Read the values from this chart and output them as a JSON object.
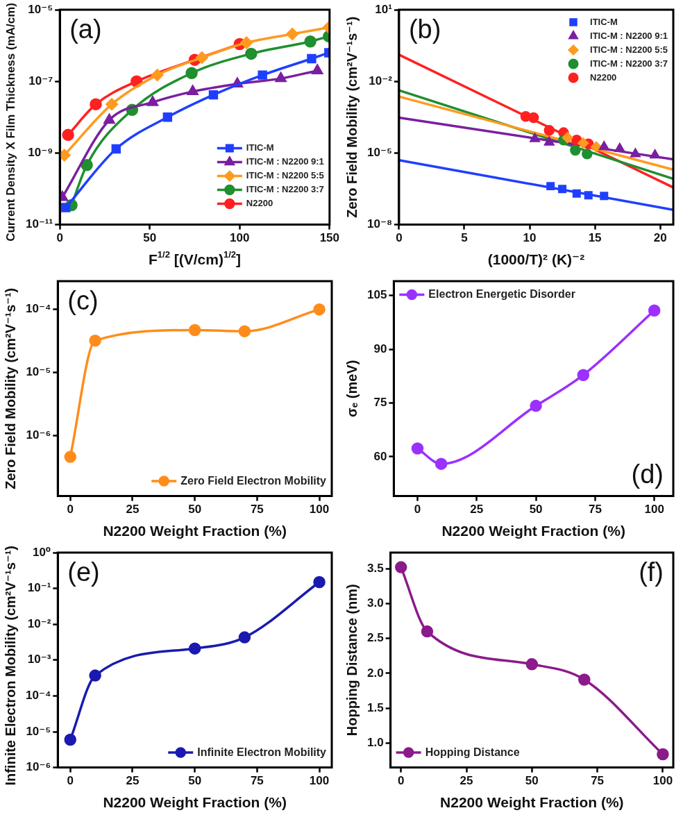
{
  "chart_data": [
    {
      "type": "line",
      "annotations": [
        "(a)"
      ],
      "xlabel": "F$^{1/2}$ [(V/cm)$^{1/2}$]",
      "ylabel": "Current Density X Film Thickness (mA/cm)",
      "log": "y",
      "xlim": [
        0,
        150
      ],
      "xticks": [
        0,
        50,
        100,
        150
      ],
      "ylim": [
        1e-11,
        1e-05
      ],
      "yticks": [
        {
          "value": 1e-11,
          "label": "10⁻¹¹"
        },
        {
          "value": 1e-09,
          "label": "10⁻⁹"
        },
        {
          "value": 1e-07,
          "label": "10⁻⁷"
        },
        {
          "value": 1e-05,
          "label": "10⁻⁵"
        }
      ],
      "legend": "bottom right",
      "grid": false,
      "series": [
        {
          "name": "ITIC-M",
          "color": "#1f3fff",
          "marker": "square",
          "x": [
            3.3,
            31.3,
            59.9,
            85.4,
            112.7,
            140,
            149.6
          ],
          "values": [
            3e-11,
            1.3e-09,
            1e-08,
            4.2e-08,
            1.5e-07,
            4.3e-07,
            6.3e-07
          ]
        },
        {
          "name": "ITIC-M : N2200 9:1",
          "color": "#7a1fa0",
          "marker": "triangle",
          "x": [
            1.4,
            27.5,
            51.6,
            73.9,
            98.7,
            122.9,
            143.2
          ],
          "values": [
            5.8e-11,
            8.3e-09,
            2.6e-08,
            5.2e-08,
            8.5e-08,
            1.2e-07,
            2e-07
          ]
        },
        {
          "name": "ITIC-M : N2200 5:5",
          "color": "#ff9a1f",
          "marker": "diamond",
          "x": [
            2.5,
            28.9,
            54.2,
            79,
            103.8,
            129.3,
            149.6
          ],
          "values": [
            8.7e-10,
            2.3e-08,
            1.5e-07,
            4.6e-07,
            1.2e-06,
            2.1e-06,
            3.2e-06
          ]
        },
        {
          "name": "ITIC-M : N2200 3:7",
          "color": "#1f8f2f",
          "marker": "circle",
          "x": [
            6.5,
            15,
            40.2,
            73.3,
            106.4,
            139.3,
            149.6
          ],
          "values": [
            3.5e-11,
            4.6e-10,
            1.6e-08,
            1.7e-07,
            5.9e-07,
            1.3e-06,
            1.8e-06
          ]
        },
        {
          "name": "N2200",
          "color": "#ff2020",
          "marker": "circle",
          "x": [
            4.6,
            20,
            42.7,
            75,
            100
          ],
          "values": [
            3.2e-09,
            2.3e-08,
            1e-07,
            4e-07,
            1.1e-06
          ]
        }
      ]
    },
    {
      "type": "scatter",
      "annotations": [
        "(b)"
      ],
      "xlabel": "(1000/T)² (K)⁻²",
      "ylabel": "Zero Field Mobility (cm²V⁻¹s⁻¹)",
      "log": "y",
      "xlim": [
        0,
        21
      ],
      "xticks": [
        0,
        5,
        10,
        15,
        20
      ],
      "ylim": [
        1e-08,
        10
      ],
      "yticks": [
        {
          "value": 1e-08,
          "label": "10⁻⁸"
        },
        {
          "value": 1e-05,
          "label": "10⁻⁵"
        },
        {
          "value": 0.01,
          "label": "10⁻²"
        },
        {
          "value": 10,
          "label": "10¹"
        }
      ],
      "legend": "top right",
      "grid": false,
      "series": [
        {
          "name": "ITIC-M",
          "color": "#1f3fff",
          "marker": "square",
          "x": [
            11.6,
            12.5,
            13.6,
            14.5,
            15.7
          ],
          "values": [
            4.1e-07,
            3.1e-07,
            2e-07,
            1.7e-07,
            1.6e-07
          ]
        },
        {
          "name": "ITIC-M : N2200 9:1",
          "color": "#7a1fa0",
          "marker": "triangle",
          "x": [
            10.4,
            11.5,
            15.7,
            16.9,
            18.1,
            19.6
          ],
          "values": [
            3.9e-05,
            2.8e-05,
            1.8e-05,
            1.5e-05,
            9.1e-06,
            8.1e-06
          ]
        },
        {
          "name": "ITIC-M : N2200 5:5",
          "color": "#ff9a1f",
          "marker": "diamond",
          "x": [
            12.9,
            14.1,
            15.1
          ],
          "values": [
            4.4e-05,
            2.6e-05,
            1.8e-05
          ]
        },
        {
          "name": "ITIC-M : N2200 3:7",
          "color": "#1f8f2f",
          "marker": "circle",
          "x": [
            12.6,
            13.5,
            14.4
          ],
          "values": [
            3.5e-05,
            1.3e-05,
            9.1e-06
          ]
        },
        {
          "name": "N2200",
          "color": "#ff2020",
          "marker": "circle",
          "x": [
            9.7,
            10.3,
            11.5,
            12.6,
            13.6,
            14.5
          ],
          "values": [
            0.00034,
            0.0003,
            8.9e-05,
            7.1e-05,
            3.5e-05,
            2.4e-05
          ]
        },
        {
          "type": "line",
          "color": "#1f3fff",
          "marker": "none",
          "x": [
            0,
            21
          ],
          "values": [
            5e-06,
            4.2e-08
          ]
        },
        {
          "type": "line",
          "color": "#7a1fa0",
          "marker": "none",
          "x": [
            0,
            21
          ],
          "values": [
            0.0003,
            5.4e-06
          ]
        },
        {
          "type": "line",
          "color": "#ff9a1f",
          "marker": "none",
          "x": [
            0,
            21
          ],
          "values": [
            0.0023,
            2e-06
          ]
        },
        {
          "type": "line",
          "color": "#1f8f2f",
          "marker": "none",
          "x": [
            0,
            21
          ],
          "values": [
            0.0042,
            8.3e-07
          ]
        },
        {
          "type": "line",
          "color": "#ff2020",
          "marker": "none",
          "x": [
            0,
            21
          ],
          "values": [
            0.13,
            3.6e-07
          ]
        }
      ]
    },
    {
      "type": "line",
      "annotations": [
        "(c)"
      ],
      "xlabel": "N2200 Weight Fraction (%)",
      "ylabel": "Zero Field Mobility (cm²V⁻¹s⁻¹)",
      "log": "y",
      "xlim": [
        -5,
        105
      ],
      "xticks": [
        0,
        25,
        50,
        75,
        100
      ],
      "ylim": [
        1.1e-07,
        0.00028
      ],
      "yticks": [
        {
          "value": 1e-06,
          "label": "10⁻⁶"
        },
        {
          "value": 1e-05,
          "label": "10⁻⁵"
        },
        {
          "value": 0.0001,
          "label": "10⁻⁴"
        }
      ],
      "legend": "bottom right",
      "grid": false,
      "marker": "circle",
      "x": [
        0,
        10,
        50,
        70,
        100
      ],
      "series": [
        {
          "name": "Zero Field Electron Mobility",
          "color": "#ff8c1a",
          "values": [
            4.6e-07,
            3.2e-05,
            4.7e-05,
            4.5e-05,
            0.0001
          ]
        }
      ]
    },
    {
      "type": "line",
      "annotations": [
        "(d)"
      ],
      "xlabel": "N2200 Weight Fraction (%)",
      "ylabel": "σₑ (meV)",
      "xlim": [
        -10,
        108
      ],
      "xticks": [
        0,
        25,
        50,
        75,
        100
      ],
      "ylim": [
        49,
        109
      ],
      "yticks": [
        60,
        75,
        90,
        105
      ],
      "legend": "top left",
      "grid": false,
      "marker": "circle",
      "x": [
        0,
        10,
        50,
        70,
        100
      ],
      "series": [
        {
          "name": "Electron Energetic Disorder",
          "color": "#9b30ff",
          "values": [
            62.3,
            58,
            74.2,
            82.8,
            100.8
          ]
        }
      ]
    },
    {
      "type": "line",
      "annotations": [
        "(e)"
      ],
      "xlabel": "N2200 Weight Fraction (%)",
      "ylabel": "Infinite Electron Mobility (cm²V⁻¹s⁻¹)",
      "log": "y",
      "xlim": [
        -5,
        105
      ],
      "xticks": [
        0,
        25,
        50,
        75,
        100
      ],
      "ylim": [
        1e-06,
        1
      ],
      "yticks": [
        {
          "value": 1e-06,
          "label": "10⁻⁶"
        },
        {
          "value": 1e-05,
          "label": "10⁻⁵"
        },
        {
          "value": 0.0001,
          "label": "10⁻⁴"
        },
        {
          "value": 0.001,
          "label": "10⁻³"
        },
        {
          "value": 0.01,
          "label": "10⁻²"
        },
        {
          "value": 0.1,
          "label": "10⁻¹"
        },
        {
          "value": 1,
          "label": "10⁰"
        }
      ],
      "legend": "bottom right",
      "grid": false,
      "marker": "circle",
      "x": [
        0,
        10,
        50,
        70,
        100
      ],
      "series": [
        {
          "name": "Infinite Electron Mobility",
          "color": "#1a1ab0",
          "values": [
            6e-06,
            0.00037,
            0.0021,
            0.0043,
            0.15
          ]
        }
      ]
    },
    {
      "type": "line",
      "annotations": [
        "(f)"
      ],
      "xlabel": "N2200 Weight Fraction (%)",
      "ylabel": "Hopping Distance (nm)",
      "xlim": [
        -4,
        104
      ],
      "xticks": [
        0,
        25,
        50,
        75,
        100
      ],
      "ylim": [
        0.65,
        3.73
      ],
      "yticks": [
        {
          "value": 1,
          "label": "1.0"
        },
        1.5,
        {
          "value": 2,
          "label": "2.0"
        },
        2.5,
        {
          "value": 3,
          "label": "3.0"
        },
        3.5
      ],
      "legend": "bottom left",
      "grid": false,
      "marker": "circle",
      "x": [
        0,
        10,
        50,
        70,
        100
      ],
      "series": [
        {
          "name": "Hopping Distance",
          "color": "#8b1a8b",
          "values": [
            3.52,
            2.6,
            2.13,
            1.91,
            0.84
          ]
        }
      ]
    }
  ]
}
